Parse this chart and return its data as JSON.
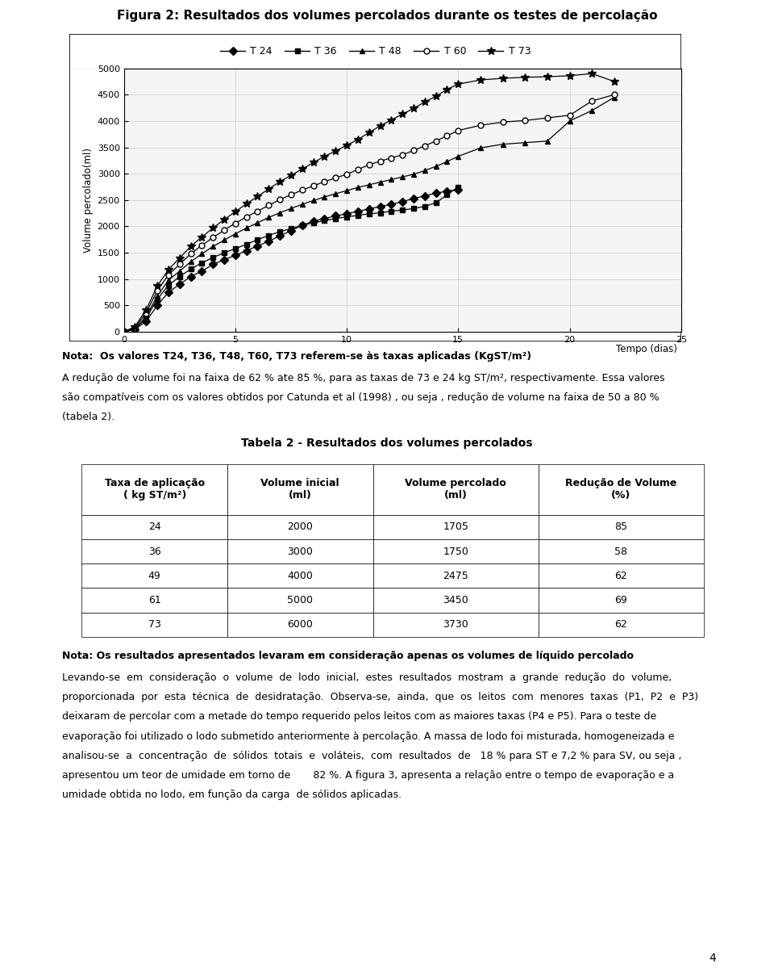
{
  "title": "Figura 2: Resultados dos volumes percolados durante os testes de percolação",
  "ylabel": "Volume percolado(ml)",
  "xlabel": "Tempo (dias)",
  "xlim": [
    0,
    25
  ],
  "ylim": [
    0,
    5000
  ],
  "yticks": [
    0,
    500,
    1000,
    1500,
    2000,
    2500,
    3000,
    3500,
    4000,
    4500,
    5000
  ],
  "xticks": [
    0,
    5,
    10,
    15,
    20,
    25
  ],
  "series": {
    "T 24": {
      "x": [
        0,
        0.5,
        1,
        1.5,
        2,
        2.5,
        3,
        3.5,
        4,
        4.5,
        5,
        5.5,
        6,
        6.5,
        7,
        7.5,
        8,
        8.5,
        9,
        9.5,
        10,
        10.5,
        11,
        11.5,
        12,
        12.5,
        13,
        13.5,
        14,
        14.5,
        15
      ],
      "y": [
        0,
        50,
        200,
        500,
        750,
        900,
        1050,
        1150,
        1280,
        1370,
        1450,
        1540,
        1630,
        1720,
        1820,
        1920,
        2020,
        2100,
        2150,
        2200,
        2240,
        2290,
        2330,
        2380,
        2420,
        2470,
        2530,
        2580,
        2630,
        2670,
        2700
      ],
      "marker": "D",
      "filled": true,
      "markersize": 5
    },
    "T 36": {
      "x": [
        0,
        0.5,
        1,
        1.5,
        2,
        2.5,
        3,
        3.5,
        4,
        4.5,
        5,
        5.5,
        6,
        6.5,
        7,
        7.5,
        8,
        8.5,
        9,
        9.5,
        10,
        10.5,
        11,
        11.5,
        12,
        12.5,
        13,
        13.5,
        14,
        14.5,
        15
      ],
      "y": [
        0,
        55,
        260,
        620,
        880,
        1050,
        1190,
        1310,
        1410,
        1500,
        1580,
        1660,
        1750,
        1830,
        1900,
        1960,
        2020,
        2070,
        2110,
        2150,
        2180,
        2210,
        2240,
        2260,
        2290,
        2310,
        2340,
        2380,
        2450,
        2600,
        2750
      ],
      "marker": "s",
      "filled": true,
      "markersize": 5
    },
    "T 48": {
      "x": [
        0,
        0.5,
        1,
        1.5,
        2,
        2.5,
        3,
        3.5,
        4,
        4.5,
        5,
        5.5,
        6,
        6.5,
        7,
        7.5,
        8,
        8.5,
        9,
        9.5,
        10,
        10.5,
        11,
        11.5,
        12,
        12.5,
        13,
        13.5,
        14,
        14.5,
        15,
        16,
        17,
        18,
        19,
        20,
        21,
        22
      ],
      "y": [
        0,
        60,
        290,
        680,
        980,
        1150,
        1330,
        1480,
        1620,
        1740,
        1860,
        1970,
        2070,
        2170,
        2260,
        2340,
        2420,
        2490,
        2560,
        2620,
        2680,
        2740,
        2790,
        2840,
        2890,
        2940,
        2990,
        3060,
        3140,
        3230,
        3330,
        3490,
        3560,
        3590,
        3620,
        4000,
        4200,
        4450
      ],
      "marker": "^",
      "filled": true,
      "markersize": 5
    },
    "T 60": {
      "x": [
        0,
        0.5,
        1,
        1.5,
        2,
        2.5,
        3,
        3.5,
        4,
        4.5,
        5,
        5.5,
        6,
        6.5,
        7,
        7.5,
        8,
        8.5,
        9,
        9.5,
        10,
        10.5,
        11,
        11.5,
        12,
        12.5,
        13,
        13.5,
        14,
        14.5,
        15,
        16,
        17,
        18,
        19,
        20,
        21,
        22
      ],
      "y": [
        0,
        80,
        360,
        780,
        1080,
        1280,
        1480,
        1640,
        1790,
        1930,
        2060,
        2180,
        2290,
        2400,
        2510,
        2600,
        2690,
        2770,
        2850,
        2920,
        2990,
        3080,
        3170,
        3240,
        3300,
        3360,
        3440,
        3530,
        3620,
        3720,
        3820,
        3920,
        3980,
        4010,
        4060,
        4110,
        4380,
        4500
      ],
      "marker": "o",
      "filled": false,
      "markersize": 5
    },
    "T 73": {
      "x": [
        0,
        0.5,
        1,
        1.5,
        2,
        2.5,
        3,
        3.5,
        4,
        4.5,
        5,
        5.5,
        6,
        6.5,
        7,
        7.5,
        8,
        8.5,
        9,
        9.5,
        10,
        10.5,
        11,
        11.5,
        12,
        12.5,
        13,
        13.5,
        14,
        14.5,
        15,
        16,
        17,
        18,
        19,
        20,
        21,
        22
      ],
      "y": [
        0,
        100,
        420,
        870,
        1180,
        1400,
        1620,
        1800,
        1970,
        2130,
        2280,
        2430,
        2570,
        2710,
        2850,
        2970,
        3090,
        3210,
        3330,
        3430,
        3540,
        3650,
        3780,
        3910,
        4020,
        4130,
        4240,
        4360,
        4470,
        4600,
        4700,
        4780,
        4810,
        4830,
        4840,
        4860,
        4900,
        4750
      ],
      "marker": "*",
      "filled": true,
      "markersize": 7
    }
  },
  "legend_order": [
    "T 24",
    "T 36",
    "T 48",
    "T 60",
    "T 73"
  ],
  "nota1_bold": "Nota:  Os valores T24, T36, T48, T60, T73 referem-se às taxas aplicadas (KgST/m",
  "nota1_sup": "2",
  "nota1_end": ")",
  "nota2": "A redução de volume foi na faixa de 62 % ate 85 %, para as taxas de 73 e 24 kg ST/m², respectivamente. Essa valores\nsão compatíveis com os valores obtidos por Catunda et al (1998) , ou seja , redução de volume na faixa de 50 a 80 %\n(tabela 2).",
  "table_title": "Tabela 2 - Resultados dos volumes percolados",
  "table_headers": [
    "Taxa de aplicação\n( kg ST/m²)",
    "Volume inicial\n(ml)",
    "Volume percolado\n(ml)",
    "Redução de Volume\n(%)"
  ],
  "table_data": [
    [
      "24",
      "2000",
      "1705",
      "85"
    ],
    [
      "36",
      "3000",
      "1750",
      "58"
    ],
    [
      "49",
      "4000",
      "2475",
      "62"
    ],
    [
      "61",
      "5000",
      "3450",
      "69"
    ],
    [
      "73",
      "6000",
      "3730",
      "62"
    ]
  ],
  "nota3": "Nota: Os resultados apresentados levaram em consideração apenas os volumes de líquido percolado",
  "body_para1": "Levando-se  em  consideração  o  volume  de  lodo  inicial,  estes  resultados  mostram  a  grande  redução  do  volume,\nproporcionada  por  esta  técnica  de  desidratação.  Observa-se,  ainda,  que  os  leitos  com  menores  taxas  (P1,  P2  e  P3)\ndeixaram de percolar com a metade do tempo requerido pelos leitos com as maiores taxas (P4 e P5). Para o teste de\nevaporação foi utilizado o lodo submetido anteriormente à percolação. A massa de lodo foi misturada, homogeneizada e\nanalisou-se  a  concentração  de  sólidos  totais  e  voláteis,  com  resultados  de   18 % para ST e 7,2 % para SV, ou seja ,\napresentou um teor de umidade em torno de       82 %. A figura 3, apresenta a relação entre o tempo de evaporação e a\numidade obtida no lodo, em função da carga  de sólidos aplicadas.",
  "page_number": "4",
  "font_size": 9,
  "title_font_size": 11,
  "background_color": "#ffffff"
}
